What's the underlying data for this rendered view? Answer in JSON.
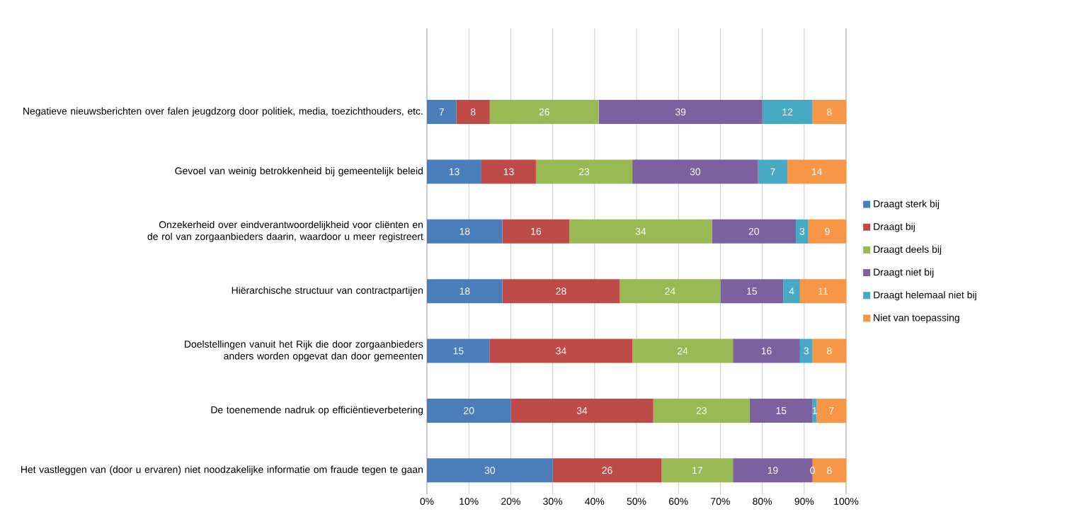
{
  "chart_data": {
    "type": "bar",
    "orientation": "horizontal",
    "stacked": true,
    "data_labels": true,
    "grid": "x",
    "legend": "right",
    "categories": [
      "Negatieve nieuwsberichten over falen jeugdzorg door politiek, media, toezichthouders, etc.",
      "Gevoel van weinig betrokkenheid bij gemeentelijk beleid",
      "Onzekerheid over eindverantwoordelijkheid voor cliënten en de rol van zorgaanbieders daarin, waardoor u meer registreert",
      "Hiërarchische structuur van contractpartijen",
      "Doelstellingen vanuit het Rijk die door zorgaanbieders anders worden opgevat dan door gemeenten",
      "De toenemende nadruk op efficiëntieverbetering",
      "Het vastleggen van (door u ervaren) niet noodzakelijke informatie om fraude tegen te gaan"
    ],
    "series": [
      {
        "name": "Draagt sterk bij",
        "color": "#4a7ebb",
        "values": [
          7,
          13,
          18,
          18,
          15,
          20,
          30
        ]
      },
      {
        "name": "Draagt bij",
        "color": "#be4b48",
        "values": [
          8,
          13,
          16,
          28,
          34,
          34,
          26
        ]
      },
      {
        "name": "Draagt deels bij",
        "color": "#98b954",
        "values": [
          26,
          23,
          34,
          24,
          24,
          23,
          17
        ]
      },
      {
        "name": "Draagt niet bij",
        "color": "#7d60a0",
        "values": [
          39,
          30,
          20,
          15,
          16,
          15,
          19
        ]
      },
      {
        "name": "Draagt helemaal niet bij",
        "color": "#46aac5",
        "values": [
          12,
          7,
          3,
          4,
          3,
          1,
          0
        ]
      },
      {
        "name": "Niet van toepassing",
        "color": "#f79646",
        "values": [
          8,
          14,
          9,
          11,
          8,
          7,
          8
        ]
      }
    ],
    "xlim": [
      0,
      100
    ],
    "xticks": [
      {
        "value": 0,
        "label": "0%"
      },
      {
        "value": 10,
        "label": "10%"
      },
      {
        "value": 20,
        "label": "20%"
      },
      {
        "value": 30,
        "label": "30%"
      },
      {
        "value": 40,
        "label": "40%"
      },
      {
        "value": 50,
        "label": "50%"
      },
      {
        "value": 60,
        "label": "60%"
      },
      {
        "value": 70,
        "label": "70%"
      },
      {
        "value": 80,
        "label": "80%"
      },
      {
        "value": 90,
        "label": "90%"
      },
      {
        "value": 100,
        "label": "100%"
      }
    ]
  }
}
